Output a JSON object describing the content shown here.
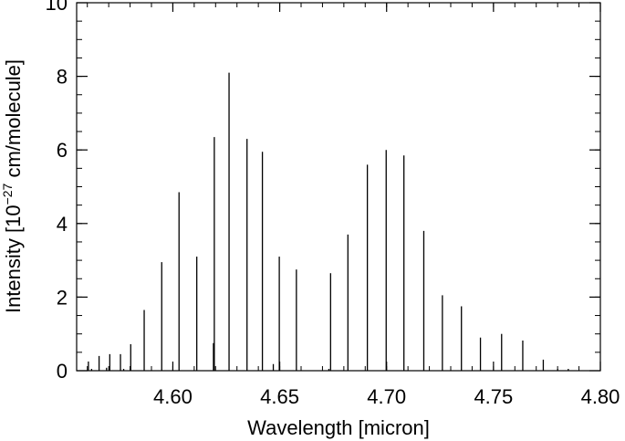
{
  "chart_data": {
    "type": "bar",
    "title": "",
    "xlabel": "Wavelength [micron]",
    "ylabel_prefix": "Intensity [10",
    "ylabel_exponent": "−27",
    "ylabel_suffix": " cm/molecule]",
    "xlim": [
      4.555,
      4.8
    ],
    "ylim": [
      0,
      10
    ],
    "x_ticks": [
      {
        "value": 4.6,
        "label": "4.60"
      },
      {
        "value": 4.65,
        "label": "4.65"
      },
      {
        "value": 4.7,
        "label": "4.70"
      },
      {
        "value": 4.75,
        "label": "4.75"
      },
      {
        "value": 4.8,
        "label": "4.80"
      }
    ],
    "x_minor_step": 0.01,
    "y_ticks": [
      {
        "value": 0,
        "label": "0"
      },
      {
        "value": 2,
        "label": "2"
      },
      {
        "value": 4,
        "label": "4"
      },
      {
        "value": 6,
        "label": "6"
      },
      {
        "value": 8,
        "label": "8"
      },
      {
        "value": 10,
        "label": "10"
      }
    ],
    "y_minor_step": 0.5,
    "grid": false,
    "series": [
      {
        "x": [
          4.5605,
          4.5655,
          4.5705,
          4.5755,
          4.5803,
          4.5866,
          4.5948,
          4.6029,
          4.6112,
          4.6194,
          4.6263,
          4.6347,
          4.6419,
          4.6498,
          4.6578,
          4.6738,
          4.6819,
          4.691,
          4.6998,
          4.7081,
          4.7174,
          4.7261,
          4.735,
          4.7439,
          4.7538,
          4.7637,
          4.7733
        ],
        "values": [
          0.25,
          0.4,
          0.45,
          0.45,
          0.72,
          1.65,
          2.95,
          4.85,
          3.1,
          6.35,
          8.1,
          6.3,
          5.95,
          3.1,
          2.75,
          2.65,
          3.7,
          5.6,
          6.0,
          5.85,
          3.8,
          2.05,
          1.75,
          0.9,
          1.0,
          0.82,
          0.3
        ]
      },
      {
        "x": [
          4.562,
          4.569,
          4.577,
          4.619,
          4.647,
          4.673,
          4.78,
          4.785
        ],
        "values": [
          0.05,
          0.08,
          0.05,
          0.75,
          0.18,
          0.05,
          0.05,
          0.05
        ]
      }
    ]
  }
}
